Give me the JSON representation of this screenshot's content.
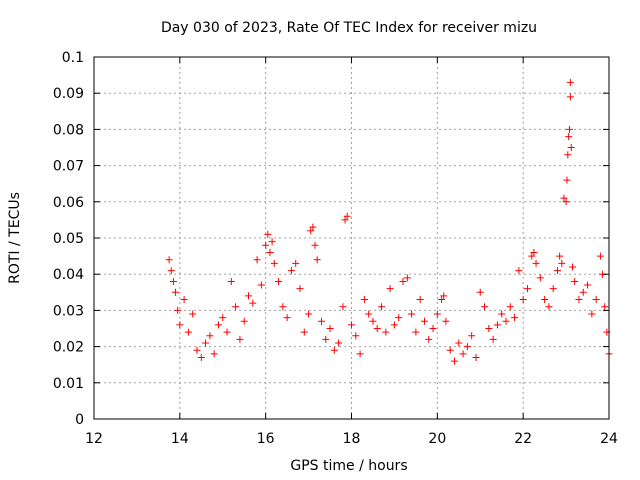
{
  "chart_data": {
    "type": "scatter",
    "title": "Day 030 of 2023, Rate Of TEC Index for receiver mizu",
    "xlabel": "GPS time / hours",
    "ylabel": "ROTI / TECUs",
    "xlim": [
      12,
      24
    ],
    "ylim": [
      0,
      0.1
    ],
    "x_ticks": [
      12,
      14,
      16,
      18,
      20,
      22,
      24
    ],
    "x_tick_labels": [
      "12",
      "14",
      "16",
      "18",
      "20",
      "22",
      "24"
    ],
    "y_ticks": [
      0,
      0.01,
      0.02,
      0.03,
      0.04,
      0.05,
      0.06,
      0.07,
      0.08,
      0.09,
      0.1
    ],
    "y_tick_labels": [
      "0",
      "0.01",
      "0.02",
      "0.03",
      "0.04",
      "0.05",
      "0.06",
      "0.07",
      "0.08",
      "0.09",
      "0.1"
    ],
    "grid": true,
    "marker": "+",
    "series": [
      {
        "name": "ROTI",
        "color": "#ff0000",
        "points": [
          [
            13.75,
            0.044
          ],
          [
            13.8,
            0.041
          ],
          [
            13.85,
            0.038
          ],
          [
            13.9,
            0.035
          ],
          [
            13.95,
            0.03
          ],
          [
            14.0,
            0.026
          ],
          [
            14.1,
            0.033
          ],
          [
            14.2,
            0.024
          ],
          [
            14.3,
            0.029
          ],
          [
            14.4,
            0.019
          ],
          [
            14.5,
            0.017
          ],
          [
            14.6,
            0.021
          ],
          [
            14.7,
            0.023
          ],
          [
            14.8,
            0.018
          ],
          [
            14.9,
            0.026
          ],
          [
            15.0,
            0.028
          ],
          [
            15.1,
            0.024
          ],
          [
            15.2,
            0.038
          ],
          [
            15.3,
            0.031
          ],
          [
            15.4,
            0.022
          ],
          [
            15.5,
            0.027
          ],
          [
            15.6,
            0.034
          ],
          [
            15.7,
            0.032
          ],
          [
            15.8,
            0.044
          ],
          [
            15.9,
            0.037
          ],
          [
            16.0,
            0.048
          ],
          [
            16.05,
            0.051
          ],
          [
            16.1,
            0.046
          ],
          [
            16.15,
            0.049
          ],
          [
            16.2,
            0.043
          ],
          [
            16.3,
            0.038
          ],
          [
            16.4,
            0.031
          ],
          [
            16.5,
            0.028
          ],
          [
            16.6,
            0.041
          ],
          [
            16.7,
            0.043
          ],
          [
            16.8,
            0.036
          ],
          [
            16.9,
            0.024
          ],
          [
            17.0,
            0.029
          ],
          [
            17.05,
            0.052
          ],
          [
            17.1,
            0.053
          ],
          [
            17.15,
            0.048
          ],
          [
            17.2,
            0.044
          ],
          [
            17.3,
            0.027
          ],
          [
            17.4,
            0.022
          ],
          [
            17.5,
            0.025
          ],
          [
            17.6,
            0.019
          ],
          [
            17.7,
            0.021
          ],
          [
            17.8,
            0.031
          ],
          [
            17.85,
            0.055
          ],
          [
            17.9,
            0.056
          ],
          [
            18.0,
            0.026
          ],
          [
            18.1,
            0.023
          ],
          [
            18.2,
            0.018
          ],
          [
            18.3,
            0.033
          ],
          [
            18.4,
            0.029
          ],
          [
            18.5,
            0.027
          ],
          [
            18.6,
            0.025
          ],
          [
            18.7,
            0.031
          ],
          [
            18.8,
            0.024
          ],
          [
            18.9,
            0.036
          ],
          [
            19.0,
            0.026
          ],
          [
            19.1,
            0.028
          ],
          [
            19.2,
            0.038
          ],
          [
            19.3,
            0.039
          ],
          [
            19.4,
            0.029
          ],
          [
            19.5,
            0.024
          ],
          [
            19.6,
            0.033
          ],
          [
            19.7,
            0.027
          ],
          [
            19.8,
            0.022
          ],
          [
            19.9,
            0.025
          ],
          [
            20.0,
            0.029
          ],
          [
            20.1,
            0.033
          ],
          [
            20.15,
            0.034
          ],
          [
            20.2,
            0.027
          ],
          [
            20.3,
            0.019
          ],
          [
            20.4,
            0.016
          ],
          [
            20.5,
            0.021
          ],
          [
            20.6,
            0.018
          ],
          [
            20.7,
            0.02
          ],
          [
            20.8,
            0.023
          ],
          [
            20.9,
            0.017
          ],
          [
            21.0,
            0.035
          ],
          [
            21.1,
            0.031
          ],
          [
            21.2,
            0.025
          ],
          [
            21.3,
            0.022
          ],
          [
            21.4,
            0.026
          ],
          [
            21.5,
            0.029
          ],
          [
            21.6,
            0.027
          ],
          [
            21.7,
            0.031
          ],
          [
            21.8,
            0.028
          ],
          [
            21.9,
            0.041
          ],
          [
            22.0,
            0.033
          ],
          [
            22.1,
            0.036
          ],
          [
            22.2,
            0.045
          ],
          [
            22.25,
            0.046
          ],
          [
            22.3,
            0.043
          ],
          [
            22.4,
            0.039
          ],
          [
            22.5,
            0.033
          ],
          [
            22.6,
            0.031
          ],
          [
            22.7,
            0.036
          ],
          [
            22.8,
            0.041
          ],
          [
            22.85,
            0.045
          ],
          [
            22.9,
            0.043
          ],
          [
            22.95,
            0.061
          ],
          [
            23.0,
            0.06
          ],
          [
            23.02,
            0.066
          ],
          [
            23.04,
            0.073
          ],
          [
            23.06,
            0.078
          ],
          [
            23.08,
            0.08
          ],
          [
            23.1,
            0.089
          ],
          [
            23.1,
            0.093
          ],
          [
            23.12,
            0.075
          ],
          [
            23.15,
            0.042
          ],
          [
            23.2,
            0.038
          ],
          [
            23.3,
            0.033
          ],
          [
            23.4,
            0.035
          ],
          [
            23.5,
            0.037
          ],
          [
            23.6,
            0.029
          ],
          [
            23.7,
            0.033
          ],
          [
            23.8,
            0.045
          ],
          [
            23.85,
            0.04
          ],
          [
            23.9,
            0.031
          ],
          [
            23.95,
            0.024
          ],
          [
            24.0,
            0.018
          ]
        ]
      }
    ]
  }
}
